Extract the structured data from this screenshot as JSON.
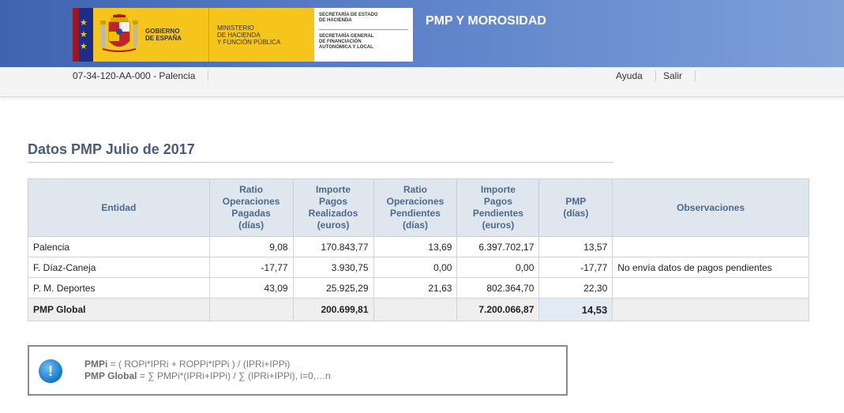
{
  "header": {
    "app_title": "PMP Y MOROSIDAD",
    "logo": {
      "gov_lines": [
        "GOBIERNO",
        "DE ESPAÑA"
      ],
      "ministry_lines": [
        "MINISTERIO",
        "DE HACIENDA",
        "Y FUNCIÓN PÚBLICA"
      ],
      "sec_top_lines": [
        "SECRETARÍA DE ESTADO",
        "DE HACIENDA"
      ],
      "sec_bottom_lines": [
        "SECRETARÍA GENERAL",
        "DE FINANCIACIÓN",
        "AUTONÓMICA Y LOCAL"
      ]
    },
    "colors": {
      "banner": "#4a6fba",
      "logo_yellow": "#f6c51b",
      "flag_red": "#a5141b",
      "flag_blue": "#1c2e86"
    }
  },
  "subnav": {
    "entity_code": "07-34-120-AA-000 - Palencia",
    "links": {
      "help": "Ayuda",
      "logout": "Salir"
    }
  },
  "page_title": "Datos PMP Julio de 2017",
  "table": {
    "headers": {
      "entity": "Entidad",
      "ratio_paid": [
        "Ratio",
        "Operaciones",
        "Pagadas",
        "(días)"
      ],
      "amount_paid": [
        "Importe",
        "Pagos",
        "Realizados",
        "(euros)"
      ],
      "ratio_pending": [
        "Ratio",
        "Operaciones",
        "Pendientes",
        "(días)"
      ],
      "amount_pending": [
        "Importe",
        "Pagos",
        "Pendientes",
        "(euros)"
      ],
      "pmp": [
        "PMP",
        "(días)"
      ],
      "observations": "Observaciones"
    },
    "rows": [
      {
        "entity": "Palencia",
        "ratio_paid": "9,08",
        "amount_paid": "170.843,77",
        "ratio_pending": "13,69",
        "amount_pending": "6.397.702,17",
        "pmp": "13,57",
        "observations": ""
      },
      {
        "entity": "F. Díaz-Caneja",
        "ratio_paid": "-17,77",
        "amount_paid": "3.930,75",
        "ratio_pending": "0,00",
        "amount_pending": "0,00",
        "pmp": "-17,77",
        "observations": "No envía datos de pagos pendientes"
      },
      {
        "entity": "P. M. Deportes",
        "ratio_paid": "43,09",
        "amount_paid": "25.925,29",
        "ratio_pending": "21,63",
        "amount_pending": "802.364,70",
        "pmp": "22,30",
        "observations": ""
      }
    ],
    "total": {
      "label": "PMP Global",
      "amount_paid": "200.699,81",
      "amount_pending": "7.200.066,87",
      "pmp": "14,53"
    }
  },
  "formula_box": {
    "icon": "info-icon",
    "line1_label": "PMPi",
    "line1_text": " = ( ROPi*IPRi + ROPPi*IPPi ) / (IPRi+IPPi)",
    "line2_label": "PMP Global",
    "line2_text": " = ∑ PMPi*(IPRi+IPPi) / ∑ (IPRi+IPPi), i=0,…n"
  }
}
